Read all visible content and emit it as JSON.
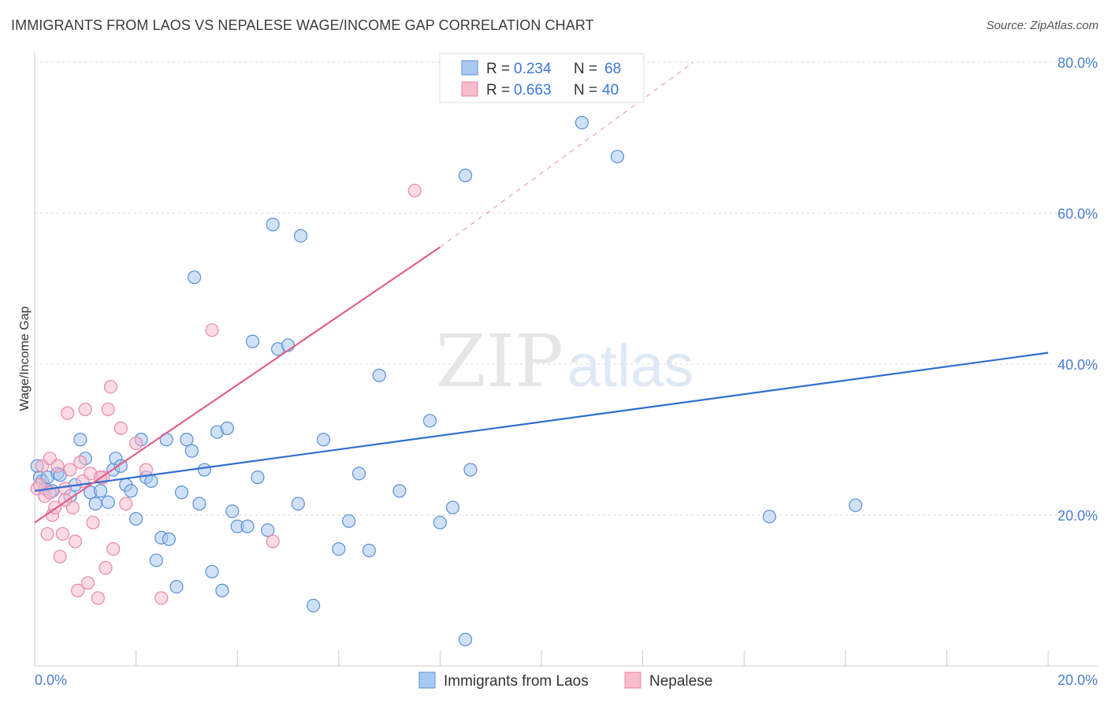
{
  "title": "IMMIGRANTS FROM LAOS VS NEPALESE WAGE/INCOME GAP CORRELATION CHART",
  "source": "Source: ZipAtlas.com",
  "watermark": {
    "zip": "ZIP",
    "atlas": "atlas"
  },
  "colors": {
    "blue_fill": "#a9c8ef",
    "blue_stroke": "#5b8fd6",
    "blue_line": "#2f6fd1",
    "pink_fill": "#f6bccd",
    "pink_stroke": "#e889a6",
    "pink_line": "#e0608c",
    "grid": "#d8d8d8",
    "tick_text": "#4a7fd0"
  },
  "legend": {
    "rows": [
      {
        "r_label": "R =",
        "r_value": "0.234",
        "n_label": "N =",
        "n_value": "68"
      },
      {
        "r_label": "R =",
        "r_value": "0.663",
        "n_label": "N =",
        "n_value": "40"
      }
    ]
  },
  "chart_data": {
    "type": "scatter",
    "title": "IMMIGRANTS FROM LAOS VS NEPALESE WAGE/INCOME GAP CORRELATION CHART",
    "xlabel": "",
    "ylabel": "Wage/Income Gap",
    "xlim": [
      0,
      20
    ],
    "ylim": [
      0,
      80
    ],
    "x_tick_labels": [
      "0.0%",
      "20.0%"
    ],
    "y_ticks": [
      20,
      40,
      60,
      80
    ],
    "y_tick_labels": [
      "20.0%",
      "40.0%",
      "60.0%",
      "80.0%"
    ],
    "grid": true,
    "series": [
      {
        "name": "Immigrants from Laos",
        "R": 0.234,
        "N": 68,
        "trend": {
          "x": [
            0,
            20
          ],
          "y": [
            23.2,
            41.5
          ]
        },
        "points": [
          [
            0.05,
            26.5
          ],
          [
            0.1,
            25.0
          ],
          [
            0.15,
            24.5
          ],
          [
            0.2,
            23.5
          ],
          [
            0.25,
            25.0
          ],
          [
            0.35,
            23.2
          ],
          [
            0.45,
            25.5
          ],
          [
            0.5,
            25.3
          ],
          [
            0.7,
            22.5
          ],
          [
            0.8,
            24.0
          ],
          [
            0.9,
            30.0
          ],
          [
            1.0,
            27.5
          ],
          [
            1.1,
            23.0
          ],
          [
            1.2,
            21.5
          ],
          [
            1.3,
            23.2
          ],
          [
            1.45,
            21.7
          ],
          [
            1.55,
            26.0
          ],
          [
            1.6,
            27.5
          ],
          [
            1.7,
            26.5
          ],
          [
            1.8,
            24.0
          ],
          [
            1.9,
            23.2
          ],
          [
            2.0,
            19.5
          ],
          [
            2.1,
            30.0
          ],
          [
            2.2,
            25.0
          ],
          [
            2.3,
            24.5
          ],
          [
            2.4,
            14.0
          ],
          [
            2.5,
            17.0
          ],
          [
            2.6,
            30.0
          ],
          [
            2.65,
            16.8
          ],
          [
            2.8,
            10.5
          ],
          [
            2.9,
            23.0
          ],
          [
            3.0,
            30.0
          ],
          [
            3.1,
            28.5
          ],
          [
            3.15,
            51.5
          ],
          [
            3.25,
            21.5
          ],
          [
            3.35,
            26.0
          ],
          [
            3.5,
            12.5
          ],
          [
            3.6,
            31.0
          ],
          [
            3.7,
            10.0
          ],
          [
            3.8,
            31.5
          ],
          [
            3.9,
            20.5
          ],
          [
            4.0,
            18.5
          ],
          [
            4.2,
            18.5
          ],
          [
            4.3,
            43.0
          ],
          [
            4.4,
            25.0
          ],
          [
            4.6,
            18.0
          ],
          [
            4.7,
            58.5
          ],
          [
            4.8,
            42.0
          ],
          [
            5.0,
            42.5
          ],
          [
            5.2,
            21.5
          ],
          [
            5.25,
            57.0
          ],
          [
            5.5,
            8.0
          ],
          [
            5.7,
            30.0
          ],
          [
            6.0,
            15.5
          ],
          [
            6.2,
            19.2
          ],
          [
            6.4,
            25.5
          ],
          [
            6.6,
            15.3
          ],
          [
            6.8,
            38.5
          ],
          [
            7.2,
            23.2
          ],
          [
            7.8,
            32.5
          ],
          [
            8.0,
            19.0
          ],
          [
            8.25,
            21.0
          ],
          [
            8.5,
            65.0
          ],
          [
            8.6,
            26.0
          ],
          [
            8.5,
            3.5
          ],
          [
            10.8,
            72.0
          ],
          [
            11.5,
            67.5
          ],
          [
            14.5,
            19.8
          ],
          [
            16.2,
            21.3
          ]
        ]
      },
      {
        "name": "Nepalese",
        "R": 0.663,
        "N": 40,
        "trend": {
          "x": [
            0,
            8.0
          ],
          "y": [
            19.0,
            55.5
          ]
        },
        "trend_dashed": {
          "x": [
            8.0,
            13.0
          ],
          "y": [
            55.5,
            80.0
          ]
        },
        "points": [
          [
            0.05,
            23.5
          ],
          [
            0.1,
            24.0
          ],
          [
            0.15,
            26.5
          ],
          [
            0.2,
            22.5
          ],
          [
            0.25,
            17.5
          ],
          [
            0.3,
            27.5
          ],
          [
            0.35,
            20.0
          ],
          [
            0.4,
            21.0
          ],
          [
            0.45,
            26.5
          ],
          [
            0.5,
            14.5
          ],
          [
            0.55,
            17.5
          ],
          [
            0.6,
            23.5
          ],
          [
            0.65,
            33.5
          ],
          [
            0.7,
            26.0
          ],
          [
            0.75,
            21.0
          ],
          [
            0.8,
            16.5
          ],
          [
            0.85,
            10.0
          ],
          [
            0.9,
            27.0
          ],
          [
            0.95,
            24.5
          ],
          [
            1.0,
            34.0
          ],
          [
            1.05,
            11.0
          ],
          [
            1.1,
            25.5
          ],
          [
            1.15,
            19.0
          ],
          [
            1.25,
            9.0
          ],
          [
            1.35,
            25.0
          ],
          [
            1.4,
            13.0
          ],
          [
            1.45,
            34.0
          ],
          [
            1.5,
            37.0
          ],
          [
            1.55,
            15.5
          ],
          [
            1.7,
            31.5
          ],
          [
            1.8,
            21.5
          ],
          [
            2.0,
            29.5
          ],
          [
            2.2,
            26.0
          ],
          [
            2.5,
            9.0
          ],
          [
            3.5,
            44.5
          ],
          [
            4.7,
            16.5
          ],
          [
            7.5,
            63.0
          ],
          [
            0.6,
            22.0
          ],
          [
            0.3,
            23.0
          ],
          [
            1.3,
            25.0
          ]
        ]
      }
    ]
  },
  "bottom_legend": [
    "Immigrants from Laos",
    "Nepalese"
  ]
}
